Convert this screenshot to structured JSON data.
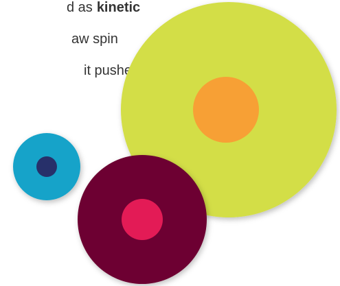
{
  "text": {
    "line_1": {
      "plain": "d as",
      "bold": "kinetic"
    },
    "line_2": "aw spin",
    "line_3": "it pushes"
  }
}
